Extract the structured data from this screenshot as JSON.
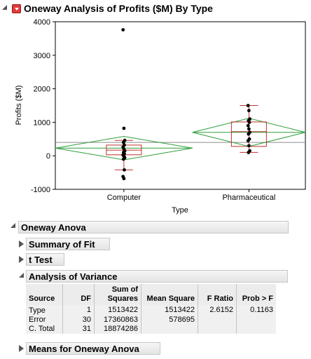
{
  "report": {
    "title": "Oneway Analysis of Profits ($M) By Type"
  },
  "chart_data": {
    "type": "scatter",
    "title": "",
    "xlabel": "Type",
    "ylabel": "Profits ($M)",
    "categories": [
      "Computer",
      "Pharmaceutical"
    ],
    "ylim": [
      -1000,
      4000
    ],
    "yticks": [
      -1000,
      0,
      1000,
      2000,
      3000,
      4000
    ],
    "grand_mean": 400,
    "groups": [
      {
        "name": "Computer",
        "points": [
          3760,
          820,
          460,
          400,
          320,
          260,
          200,
          150,
          100,
          60,
          20,
          -10,
          -60,
          -100,
          -420,
          -620,
          -680
        ],
        "box": {
          "q1": 30,
          "median": 170,
          "q3": 320,
          "whisker_low": -420,
          "whisker_high": 460
        },
        "mean_diamond": {
          "mean": 230,
          "upper": 580,
          "lower": -120
        }
      },
      {
        "name": "Pharmaceutical",
        "points": [
          1500,
          1350,
          1100,
          1050,
          1000,
          900,
          800,
          700,
          650,
          500,
          450,
          300,
          150,
          100
        ],
        "box": {
          "q1": 280,
          "median": 720,
          "q3": 1010,
          "whisker_low": 100,
          "whisker_high": 1500
        },
        "mean_diamond": {
          "mean": 700,
          "upper": 1120,
          "lower": 280
        }
      }
    ],
    "colors": {
      "points": "#000000",
      "box": "#c0302c",
      "diamond": "#2e9e3a",
      "grand_mean_line": "#8c8c8c"
    }
  },
  "sections": {
    "oneway_anova": "Oneway Anova",
    "summary_of_fit": "Summary of Fit",
    "t_test": "t Test",
    "analysis_of_variance": "Analysis of Variance",
    "means_for_oneway_anova": "Means for Oneway Anova"
  },
  "anova_table": {
    "headers": {
      "source": "Source",
      "df": "DF",
      "ss_line1": "Sum of",
      "ss_line2": "Squares",
      "ms": "Mean Square",
      "f": "F Ratio",
      "p": "Prob > F"
    },
    "rows": [
      {
        "source": "Type",
        "df": "1",
        "ss": "1513422",
        "ms": "1513422",
        "f": "2.6152",
        "p": "0.1163"
      },
      {
        "source": "Error",
        "df": "30",
        "ss": "17360863",
        "ms": "578695",
        "f": "",
        "p": ""
      },
      {
        "source": "C. Total",
        "df": "31",
        "ss": "18874286",
        "ms": "",
        "f": "",
        "p": ""
      }
    ]
  }
}
